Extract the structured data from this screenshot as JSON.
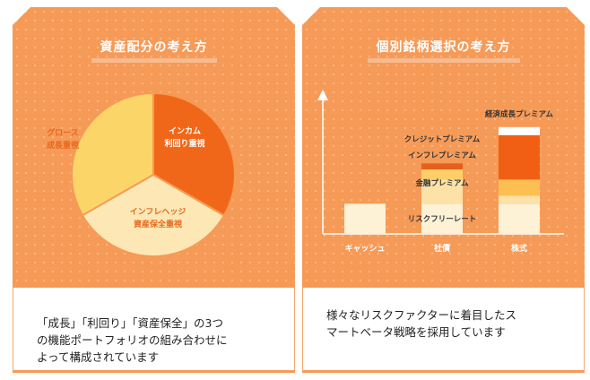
{
  "left_card": {
    "title": "資産配分の考え方",
    "pie": {
      "segments": [
        {
          "name": "growth",
          "label_lines": [
            "グロース",
            "成長重視"
          ],
          "share": 0.333,
          "color": "#fcd569"
        },
        {
          "name": "income",
          "label_lines": [
            "インカム",
            "利回り重視"
          ],
          "share": 0.333,
          "color": "#f16719"
        },
        {
          "name": "hedge",
          "label_lines": [
            "インフレヘッジ",
            "資産保全重視"
          ],
          "share": 0.334,
          "color": "#fde8b5"
        }
      ]
    },
    "description_lines": [
      "「成長」「利回り」「資産保全」の3つ",
      "の機能ポートフォリオの組み合わせに",
      "よって構成されています"
    ]
  },
  "right_card": {
    "title": "個別銘柄選択の考え方",
    "bars": [
      {
        "name": "cash",
        "label": "キャッシュ",
        "segments": [
          {
            "value": 1.5,
            "color": "#fdf1d6"
          }
        ]
      },
      {
        "name": "bond",
        "label": "社債",
        "segments": [
          {
            "value": 1.5,
            "color": "#fdf1d6"
          },
          {
            "value": 1.2,
            "color": "#fde2a8"
          },
          {
            "value": 0.5,
            "color": "#fdcf6a"
          },
          {
            "value": 0.3,
            "color": "#e3611b"
          }
        ]
      },
      {
        "name": "stock",
        "label": "株式",
        "segments": [
          {
            "value": 1.5,
            "color": "#fdf1d6"
          },
          {
            "value": 0.4,
            "color": "#fde2a8"
          },
          {
            "value": 0.8,
            "color": "#fdbf52"
          },
          {
            "value": 2.2,
            "color": "#f15f15"
          },
          {
            "value": 0.4,
            "color": "#ffffff"
          }
        ]
      }
    ],
    "premium_labels": {
      "risk_free": "リスクフリーレート",
      "financial": "金融プレミアム",
      "inflation": "インフレプレミアム",
      "credit": "クレジットプレミアム",
      "economic_growth": "経済成長プレミアム"
    },
    "description_lines": [
      "様々なリスクファクターに着目したス",
      "マートベータ戦略を採用しています"
    ]
  }
}
